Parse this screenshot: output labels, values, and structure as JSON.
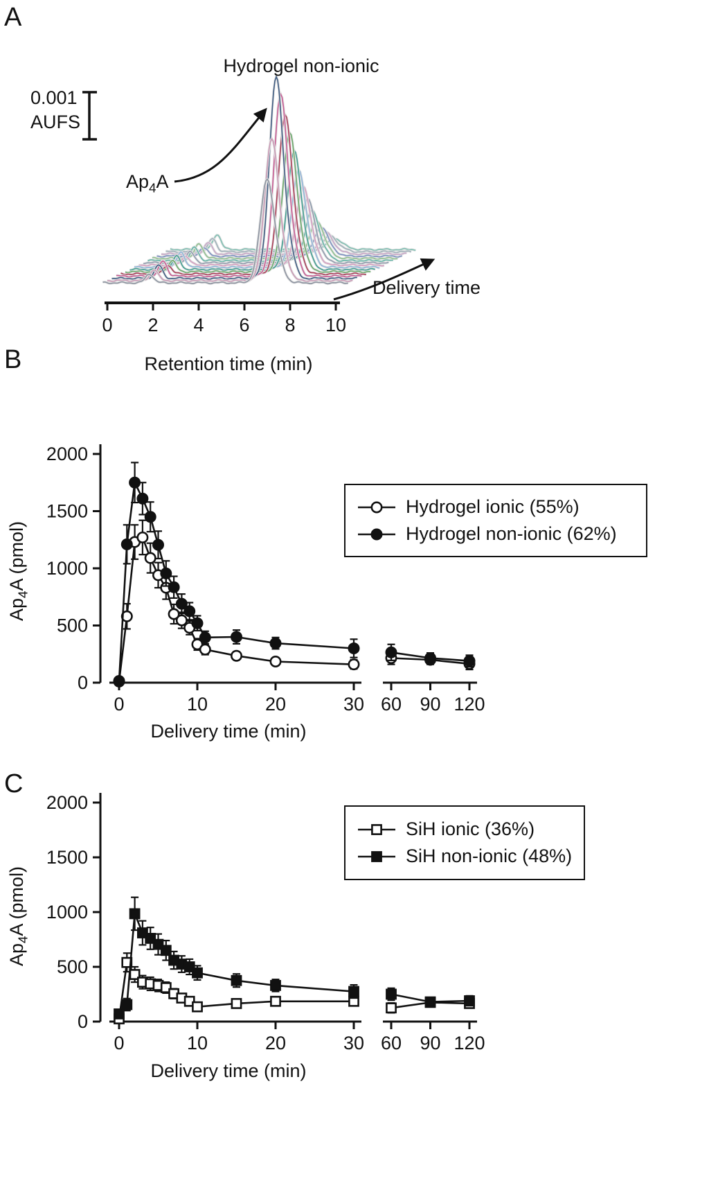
{
  "figure": {
    "background": "#ffffff",
    "text_color": "#111111"
  },
  "chart_data": [
    {
      "panel": "A",
      "type": "line",
      "subtype": "waterfall_chromatogram_overlay",
      "title": "Hydrogel non-ionic",
      "scale_bar": {
        "value": "0.001",
        "unit": "AUFS"
      },
      "peak_annotation": {
        "prefix": "Ap",
        "sub": "4",
        "suffix": "A"
      },
      "z_axis_label": "Delivery time",
      "xlabel": "Retention time (min)",
      "xlim": [
        0,
        10
      ],
      "xticks": [
        0,
        2,
        4,
        6,
        8,
        10
      ],
      "main_peak_retention_min": 7.0,
      "secondary_peak_retention_min": 1.85,
      "traces": [
        {
          "color": "#8c93a0",
          "peak_height": 150
        },
        {
          "color": "#c998b4",
          "peak_height": 205
        },
        {
          "color": "#3d5a80",
          "peak_height": 290
        },
        {
          "color": "#c75b93",
          "peak_height": 262
        },
        {
          "color": "#a83b55",
          "peak_height": 230
        },
        {
          "color": "#69a869",
          "peak_height": 200
        },
        {
          "color": "#3f9d8f",
          "peak_height": 170
        },
        {
          "color": "#8fb4d8",
          "peak_height": 140
        },
        {
          "color": "#d49ec0",
          "peak_height": 114
        },
        {
          "color": "#8e9aac",
          "peak_height": 92
        },
        {
          "color": "#63b5a6",
          "peak_height": 72
        },
        {
          "color": "#8fc08f",
          "peak_height": 55
        },
        {
          "color": "#7a90c0",
          "peak_height": 42
        },
        {
          "color": "#c7a6c7",
          "peak_height": 31
        },
        {
          "color": "#9fb0ba",
          "peak_height": 23
        },
        {
          "color": "#7fbfb2",
          "peak_height": 16
        }
      ]
    },
    {
      "panel": "B",
      "type": "line",
      "subtype": "timecourse_with_error_bars",
      "ylabel": {
        "prefix": "Ap",
        "sub": "4",
        "suffix": "A (pmol)"
      },
      "xlabel": "Delivery time (min)",
      "ylim": [
        0,
        2000
      ],
      "yticks": [
        0,
        500,
        1000,
        1500,
        2000
      ],
      "x_axis": {
        "segment1_ticks": [
          0,
          10,
          20,
          30
        ],
        "segment2_ticks": [
          60,
          90,
          120
        ],
        "break_between": [
          30,
          60
        ]
      },
      "legend_position": "upper right",
      "series": [
        {
          "name": "Hydrogel ionic (55%)",
          "marker": "circle-open",
          "color": "#111111",
          "points": [
            [
              0,
              10,
              0
            ],
            [
              1,
              580,
              110
            ],
            [
              2,
              1230,
              150
            ],
            [
              3,
              1270,
              150
            ],
            [
              4,
              1090,
              130
            ],
            [
              5,
              940,
              110
            ],
            [
              6,
              830,
              100
            ],
            [
              7,
              600,
              85
            ],
            [
              8,
              545,
              70
            ],
            [
              9,
              480,
              60
            ],
            [
              10,
              335,
              50
            ],
            [
              11,
              290,
              45
            ],
            [
              15,
              235,
              35
            ],
            [
              20,
              185,
              30
            ],
            [
              30,
              160,
              40
            ],
            [
              60,
              215,
              55
            ],
            [
              90,
              200,
              40
            ],
            [
              120,
              165,
              50
            ]
          ]
        },
        {
          "name": "Hydrogel non-ionic (62%)",
          "marker": "circle-filled",
          "color": "#111111",
          "points": [
            [
              0,
              15,
              0
            ],
            [
              1,
              1210,
              170
            ],
            [
              2,
              1750,
              175
            ],
            [
              3,
              1610,
              140
            ],
            [
              4,
              1450,
              130
            ],
            [
              5,
              1205,
              120
            ],
            [
              6,
              955,
              110
            ],
            [
              7,
              835,
              95
            ],
            [
              8,
              690,
              85
            ],
            [
              9,
              625,
              75
            ],
            [
              10,
              520,
              65
            ],
            [
              11,
              395,
              55
            ],
            [
              15,
              400,
              60
            ],
            [
              20,
              345,
              50
            ],
            [
              30,
              300,
              80
            ],
            [
              60,
              265,
              70
            ],
            [
              90,
              215,
              45
            ],
            [
              120,
              190,
              50
            ]
          ]
        }
      ]
    },
    {
      "panel": "C",
      "type": "line",
      "subtype": "timecourse_with_error_bars",
      "ylabel": {
        "prefix": "Ap",
        "sub": "4",
        "suffix": "A (pmol)"
      },
      "xlabel": "Delivery time (min)",
      "ylim": [
        0,
        2000
      ],
      "yticks": [
        0,
        500,
        1000,
        1500,
        2000
      ],
      "x_axis": {
        "segment1_ticks": [
          0,
          10,
          20,
          30
        ],
        "segment2_ticks": [
          60,
          90,
          120
        ],
        "break_between": [
          30,
          60
        ]
      },
      "legend_position": "upper right",
      "series": [
        {
          "name": "SiH ionic (36%)",
          "marker": "square-open",
          "color": "#111111",
          "points": [
            [
              0,
              25,
              0
            ],
            [
              1,
              540,
              85
            ],
            [
              2,
              430,
              70
            ],
            [
              3,
              360,
              60
            ],
            [
              4,
              345,
              60
            ],
            [
              5,
              330,
              55
            ],
            [
              6,
              310,
              50
            ],
            [
              7,
              255,
              45
            ],
            [
              8,
              215,
              40
            ],
            [
              9,
              185,
              35
            ],
            [
              10,
              135,
              30
            ],
            [
              15,
              165,
              30
            ],
            [
              20,
              185,
              35
            ],
            [
              30,
              185,
              40
            ],
            [
              60,
              125,
              45
            ],
            [
              90,
              175,
              35
            ],
            [
              120,
              165,
              40
            ]
          ]
        },
        {
          "name": "SiH non-ionic (48%)",
          "marker": "square-filled",
          "color": "#111111",
          "points": [
            [
              0,
              70,
              20
            ],
            [
              1,
              155,
              55
            ],
            [
              2,
              985,
              150
            ],
            [
              3,
              810,
              110
            ],
            [
              4,
              760,
              100
            ],
            [
              5,
              705,
              95
            ],
            [
              6,
              650,
              90
            ],
            [
              7,
              560,
              80
            ],
            [
              8,
              525,
              75
            ],
            [
              9,
              500,
              70
            ],
            [
              10,
              445,
              65
            ],
            [
              15,
              375,
              60
            ],
            [
              20,
              330,
              55
            ],
            [
              30,
              275,
              60
            ],
            [
              60,
              250,
              55
            ],
            [
              90,
              180,
              40
            ],
            [
              120,
              190,
              45
            ]
          ]
        }
      ]
    }
  ]
}
